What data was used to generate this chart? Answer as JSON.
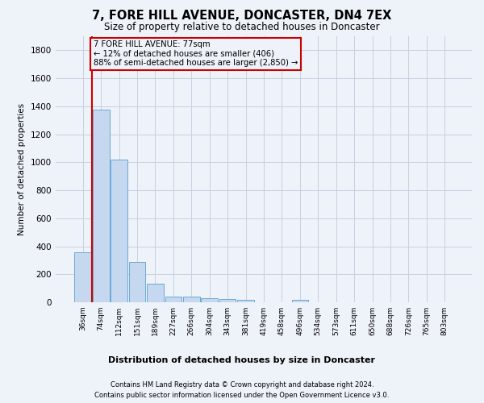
{
  "title": "7, FORE HILL AVENUE, DONCASTER, DN4 7EX",
  "subtitle": "Size of property relative to detached houses in Doncaster",
  "xlabel_bottom": "Distribution of detached houses by size in Doncaster",
  "ylabel": "Number of detached properties",
  "footnote1": "Contains HM Land Registry data © Crown copyright and database right 2024.",
  "footnote2": "Contains public sector information licensed under the Open Government Licence v3.0.",
  "bin_labels": [
    "36sqm",
    "74sqm",
    "112sqm",
    "151sqm",
    "189sqm",
    "227sqm",
    "266sqm",
    "304sqm",
    "343sqm",
    "381sqm",
    "419sqm",
    "458sqm",
    "496sqm",
    "534sqm",
    "573sqm",
    "611sqm",
    "650sqm",
    "688sqm",
    "726sqm",
    "765sqm",
    "803sqm"
  ],
  "bar_heights": [
    355,
    1375,
    1020,
    290,
    130,
    42,
    38,
    30,
    22,
    15,
    0,
    0,
    18,
    0,
    0,
    0,
    0,
    0,
    0,
    0,
    0
  ],
  "bar_color": "#c5d8ef",
  "bar_edge_color": "#6aaad4",
  "ylim": [
    0,
    1900
  ],
  "yticks": [
    0,
    200,
    400,
    600,
    800,
    1000,
    1200,
    1400,
    1600,
    1800
  ],
  "red_line_x": 0.5,
  "annotation_line1": "7 FORE HILL AVENUE: 77sqm",
  "annotation_line2": "← 12% of detached houses are smaller (406)",
  "annotation_line3": "88% of semi-detached houses are larger (2,850) →",
  "annotation_box_color": "#cc0000",
  "background_color": "#eef2f9",
  "grid_color": "#c8cfe0"
}
